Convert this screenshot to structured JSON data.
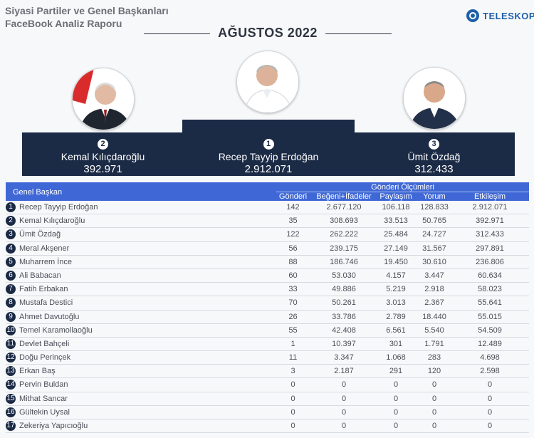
{
  "header": {
    "title_line1": "Siyasi Partiler ve Genel Başkanları",
    "title_line2": "FaceBook Analiz Raporu",
    "brand": "TELESKOP",
    "month": "AĞUSTOS 2022"
  },
  "podium": [
    {
      "rank": "2",
      "name": "Kemal Kılıçdaroğlu",
      "value": "392.971"
    },
    {
      "rank": "1",
      "name": "Recep Tayyip Erdoğan",
      "value": "2.912.071"
    },
    {
      "rank": "3",
      "name": "Ümit Özdağ",
      "value": "312.433"
    }
  ],
  "table": {
    "label_col": "Genel Başkan",
    "group": "Gönderi Ölçümleri",
    "columns": [
      "Gönderi",
      "Beğeni+İfadeler",
      "Paylaşım",
      "Yorum",
      "Etkileşim"
    ],
    "rows": [
      {
        "n": "1",
        "name": "Recep Tayyip Erdoğan",
        "v": [
          "142",
          "2.677.120",
          "106.118",
          "128.833",
          "2.912.071"
        ]
      },
      {
        "n": "2",
        "name": "Kemal Kılıçdaroğlu",
        "v": [
          "35",
          "308.693",
          "33.513",
          "50.765",
          "392.971"
        ]
      },
      {
        "n": "3",
        "name": "Ümit Özdağ",
        "v": [
          "122",
          "262.222",
          "25.484",
          "24.727",
          "312.433"
        ]
      },
      {
        "n": "4",
        "name": "Meral Akşener",
        "v": [
          "56",
          "239.175",
          "27.149",
          "31.567",
          "297.891"
        ]
      },
      {
        "n": "5",
        "name": "Muharrem İnce",
        "v": [
          "88",
          "186.746",
          "19.450",
          "30.610",
          "236.806"
        ]
      },
      {
        "n": "6",
        "name": "Ali Babacan",
        "v": [
          "60",
          "53.030",
          "4.157",
          "3.447",
          "60.634"
        ]
      },
      {
        "n": "7",
        "name": "Fatih Erbakan",
        "v": [
          "33",
          "49.886",
          "5.219",
          "2.918",
          "58.023"
        ]
      },
      {
        "n": "8",
        "name": "Mustafa Destici",
        "v": [
          "70",
          "50.261",
          "3.013",
          "2.367",
          "55.641"
        ]
      },
      {
        "n": "9",
        "name": "Ahmet Davutoğlu",
        "v": [
          "26",
          "33.786",
          "2.789",
          "18.440",
          "55.015"
        ]
      },
      {
        "n": "10",
        "name": "Temel Karamollaoğlu",
        "v": [
          "55",
          "42.408",
          "6.561",
          "5.540",
          "54.509"
        ]
      },
      {
        "n": "11",
        "name": "Devlet Bahçeli",
        "v": [
          "1",
          "10.397",
          "301",
          "1.791",
          "12.489"
        ]
      },
      {
        "n": "12",
        "name": "Doğu Perinçek",
        "v": [
          "11",
          "3.347",
          "1.068",
          "283",
          "4.698"
        ]
      },
      {
        "n": "13",
        "name": "Erkan Baş",
        "v": [
          "3",
          "2.187",
          "291",
          "120",
          "2.598"
        ]
      },
      {
        "n": "14",
        "name": "Pervin Buldan",
        "v": [
          "0",
          "0",
          "0",
          "0",
          "0"
        ]
      },
      {
        "n": "15",
        "name": "Mithat Sancar",
        "v": [
          "0",
          "0",
          "0",
          "0",
          "0"
        ]
      },
      {
        "n": "16",
        "name": "Gültekin Uysal",
        "v": [
          "0",
          "0",
          "0",
          "0",
          "0"
        ]
      },
      {
        "n": "17",
        "name": "Zekeriya Yapıcıoğlu",
        "v": [
          "0",
          "0",
          "0",
          "0",
          "0"
        ]
      }
    ]
  }
}
